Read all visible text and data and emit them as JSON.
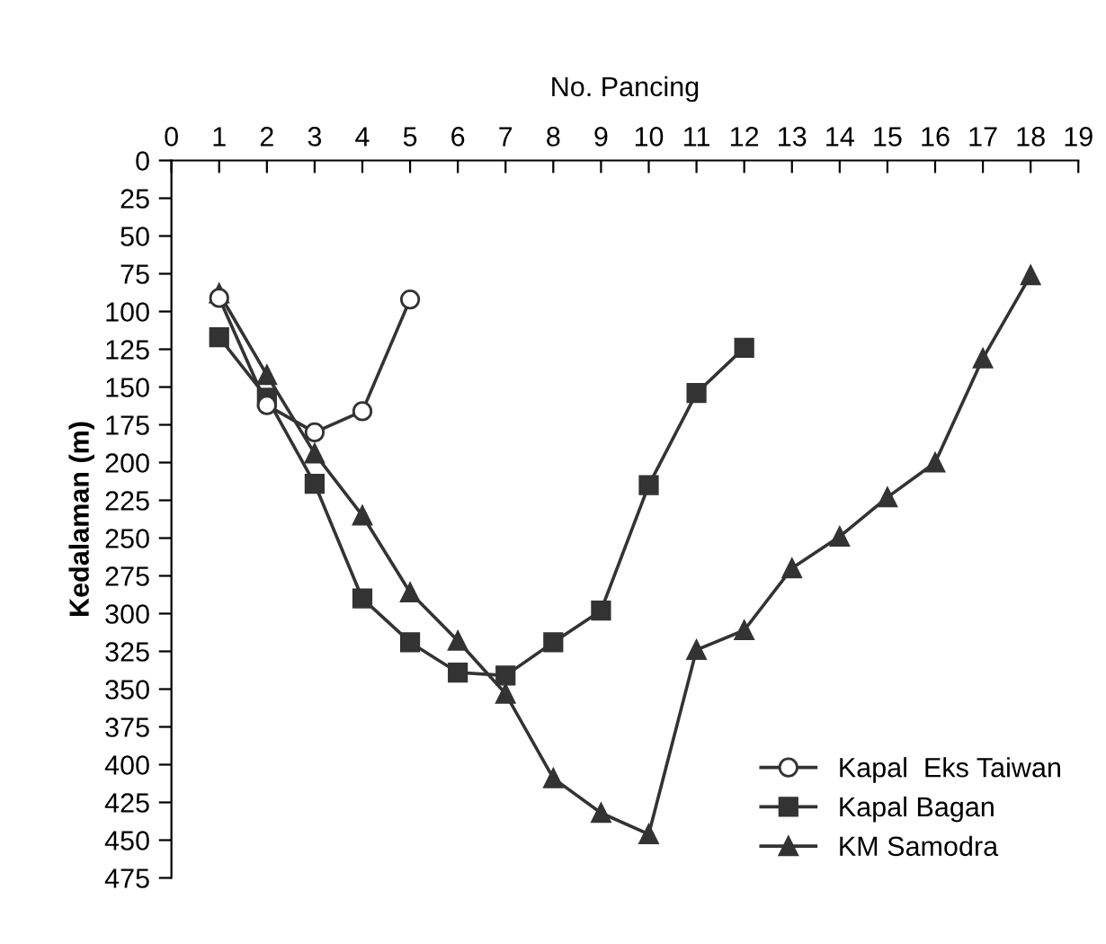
{
  "chart_data": {
    "type": "line",
    "xlabel": "No. Pancing",
    "ylabel": "Kedalaman (m)",
    "xlim": [
      0,
      19
    ],
    "xticks": [
      0,
      1,
      2,
      3,
      4,
      5,
      6,
      7,
      8,
      9,
      10,
      11,
      12,
      13,
      14,
      15,
      16,
      17,
      18,
      19
    ],
    "ylim": [
      475,
      0
    ],
    "yticks": [
      0,
      25,
      50,
      75,
      100,
      125,
      150,
      175,
      200,
      225,
      250,
      275,
      300,
      325,
      350,
      375,
      400,
      425,
      450,
      475
    ],
    "grid": false,
    "legend": "bottom right",
    "line_style": "solid",
    "series": [
      {
        "name": "Kapal  Eks Taiwan",
        "color": "#333333",
        "marker": "circle",
        "x": [
          1,
          2,
          3,
          4,
          5
        ],
        "values": [
          91,
          162,
          180,
          166,
          92
        ]
      },
      {
        "name": "Kapal Bagan",
        "color": "#333333",
        "marker": "square",
        "x": [
          1,
          2,
          3,
          4,
          5,
          6,
          7,
          8,
          9,
          10,
          11,
          12
        ],
        "values": [
          117,
          157,
          214,
          290,
          319,
          339,
          341,
          319,
          298,
          215,
          154,
          124
        ]
      },
      {
        "name": "KM Samodra",
        "color": "#333333",
        "marker": "triangle",
        "x": [
          1,
          2,
          3,
          4,
          5,
          6,
          7,
          8,
          9,
          10,
          11,
          12,
          13,
          14,
          15,
          16,
          17,
          18
        ],
        "values": [
          88,
          142,
          194,
          235,
          286,
          318,
          353,
          409,
          432,
          446,
          324,
          311,
          270,
          249,
          223,
          200,
          131,
          76
        ]
      }
    ]
  }
}
